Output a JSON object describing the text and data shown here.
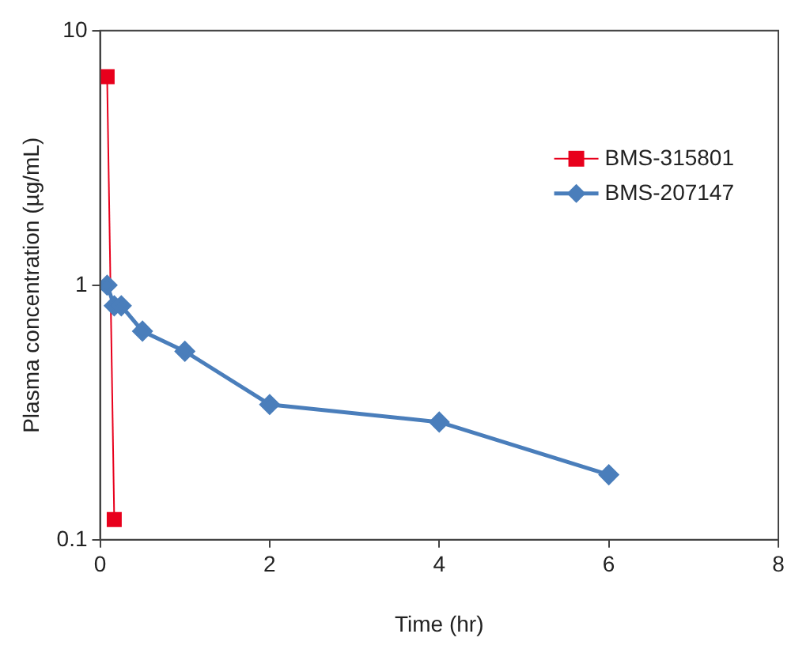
{
  "chart_data": {
    "type": "line",
    "xlabel": "Time (hr)",
    "ylabel": "Plasma concentration (µg/mL)",
    "log": "y",
    "xlim": [
      0,
      8
    ],
    "xticks": [
      0,
      2,
      4,
      6,
      8
    ],
    "ylim": [
      0.1,
      10
    ],
    "yticks": [
      0.1,
      1,
      10
    ],
    "grid": false,
    "legend": "top right",
    "series": [
      {
        "name": "BMS-315801",
        "color": "#e8001c",
        "marker": "square",
        "x": [
          0.083,
          0.167
        ],
        "values": [
          6.6,
          0.12
        ]
      },
      {
        "name": "BMS-207147",
        "color": "#4a7ebb",
        "marker": "diamond",
        "x": [
          0.083,
          0.167,
          0.25,
          0.5,
          1,
          2,
          4,
          6
        ],
        "values": [
          1.0,
          0.83,
          0.83,
          0.66,
          0.55,
          0.34,
          0.29,
          0.18
        ]
      }
    ]
  }
}
